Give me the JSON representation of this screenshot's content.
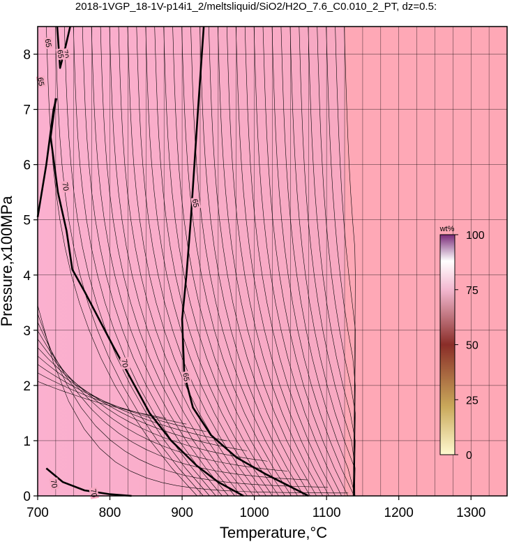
{
  "chart_data": {
    "type": "heatmap",
    "title": "2018-1VGP_18-1V-p14i1_2/meltsliquid/SiO2/H2O_7.6_C0.010_2_PT, dz=0.5:",
    "xlabel": "Temperature,°C",
    "ylabel": "Pressure,x100MPa",
    "xlim": [
      700,
      1350
    ],
    "ylim": [
      0,
      8.5
    ],
    "x_ticks": [
      "700",
      "800",
      "900",
      "1000",
      "1100",
      "1200",
      "1300"
    ],
    "y_ticks": [
      "0",
      "1",
      "2",
      "3",
      "4",
      "5",
      "6",
      "7",
      "8"
    ],
    "grid": true,
    "colorbar": {
      "unit": "wt%",
      "ticks": [
        "0",
        "25",
        "50",
        "75",
        "100"
      ],
      "range": [
        0,
        100
      ],
      "colors": [
        "#fffad0",
        "#c9a85a",
        "#8a2d28",
        "#f3b8d0",
        "#ffffff",
        "#7a2a78"
      ]
    },
    "background_colors": {
      "melt_field": "#f7a9c3",
      "low_temp_field": "#fbb0cf",
      "high_temp_field": "#fea8b6"
    },
    "bold_contours": [
      {
        "label": "65",
        "points": [
          [
            930,
            8.5
          ],
          [
            922,
            7.0
          ],
          [
            917,
            6.0
          ],
          [
            912,
            5.0
          ],
          [
            906,
            4.0
          ],
          [
            900,
            3.2
          ],
          [
            903,
            2.2
          ],
          [
            915,
            1.6
          ],
          [
            940,
            1.1
          ],
          [
            975,
            0.7
          ],
          [
            1015,
            0.4
          ],
          [
            1045,
            0.2
          ],
          [
            1075,
            0
          ]
        ]
      },
      {
        "label": "70",
        "points": [
          [
            725,
            7.2
          ],
          [
            718,
            6.5
          ],
          [
            728,
            5.5
          ],
          [
            740,
            4.8
          ],
          [
            748,
            4.1
          ],
          [
            765,
            3.7
          ],
          [
            785,
            3.2
          ],
          [
            805,
            2.7
          ],
          [
            830,
            2.1
          ],
          [
            855,
            1.5
          ],
          [
            885,
            1.0
          ],
          [
            920,
            0.55
          ],
          [
            950,
            0.25
          ],
          [
            985,
            0
          ]
        ]
      },
      {
        "label": "70",
        "points": [
          [
            700,
            5.05
          ],
          [
            712,
            6.0
          ],
          [
            722,
            7.0
          ],
          [
            726,
            7.2
          ]
        ]
      },
      {
        "label": "70",
        "points": [
          [
            712,
            0.5
          ],
          [
            735,
            0.25
          ],
          [
            765,
            0.1
          ],
          [
            800,
            0.03
          ],
          [
            830,
            0
          ]
        ]
      },
      {
        "label": "70",
        "points": [
          [
            745,
            8.5
          ],
          [
            738,
            8.1
          ],
          [
            731,
            7.75
          ],
          [
            727,
            8.5
          ]
        ]
      }
    ],
    "contour_labels": [
      {
        "text": "65",
        "x": 918,
        "y": 5.3
      },
      {
        "text": "65",
        "x": 905,
        "y": 2.15
      },
      {
        "text": "70",
        "x": 738,
        "y": 5.6
      },
      {
        "text": "70",
        "x": 820,
        "y": 2.4
      },
      {
        "text": "70",
        "x": 722,
        "y": 0.22
      },
      {
        "text": "70",
        "x": 777,
        "y": 0.05
      },
      {
        "text": "70",
        "x": 738,
        "y": 8.0
      },
      {
        "text": "65",
        "x": 731,
        "y": 8.0
      },
      {
        "text": "65",
        "x": 714,
        "y": 8.2
      },
      {
        "text": "65",
        "x": 704,
        "y": 7.5
      }
    ]
  }
}
